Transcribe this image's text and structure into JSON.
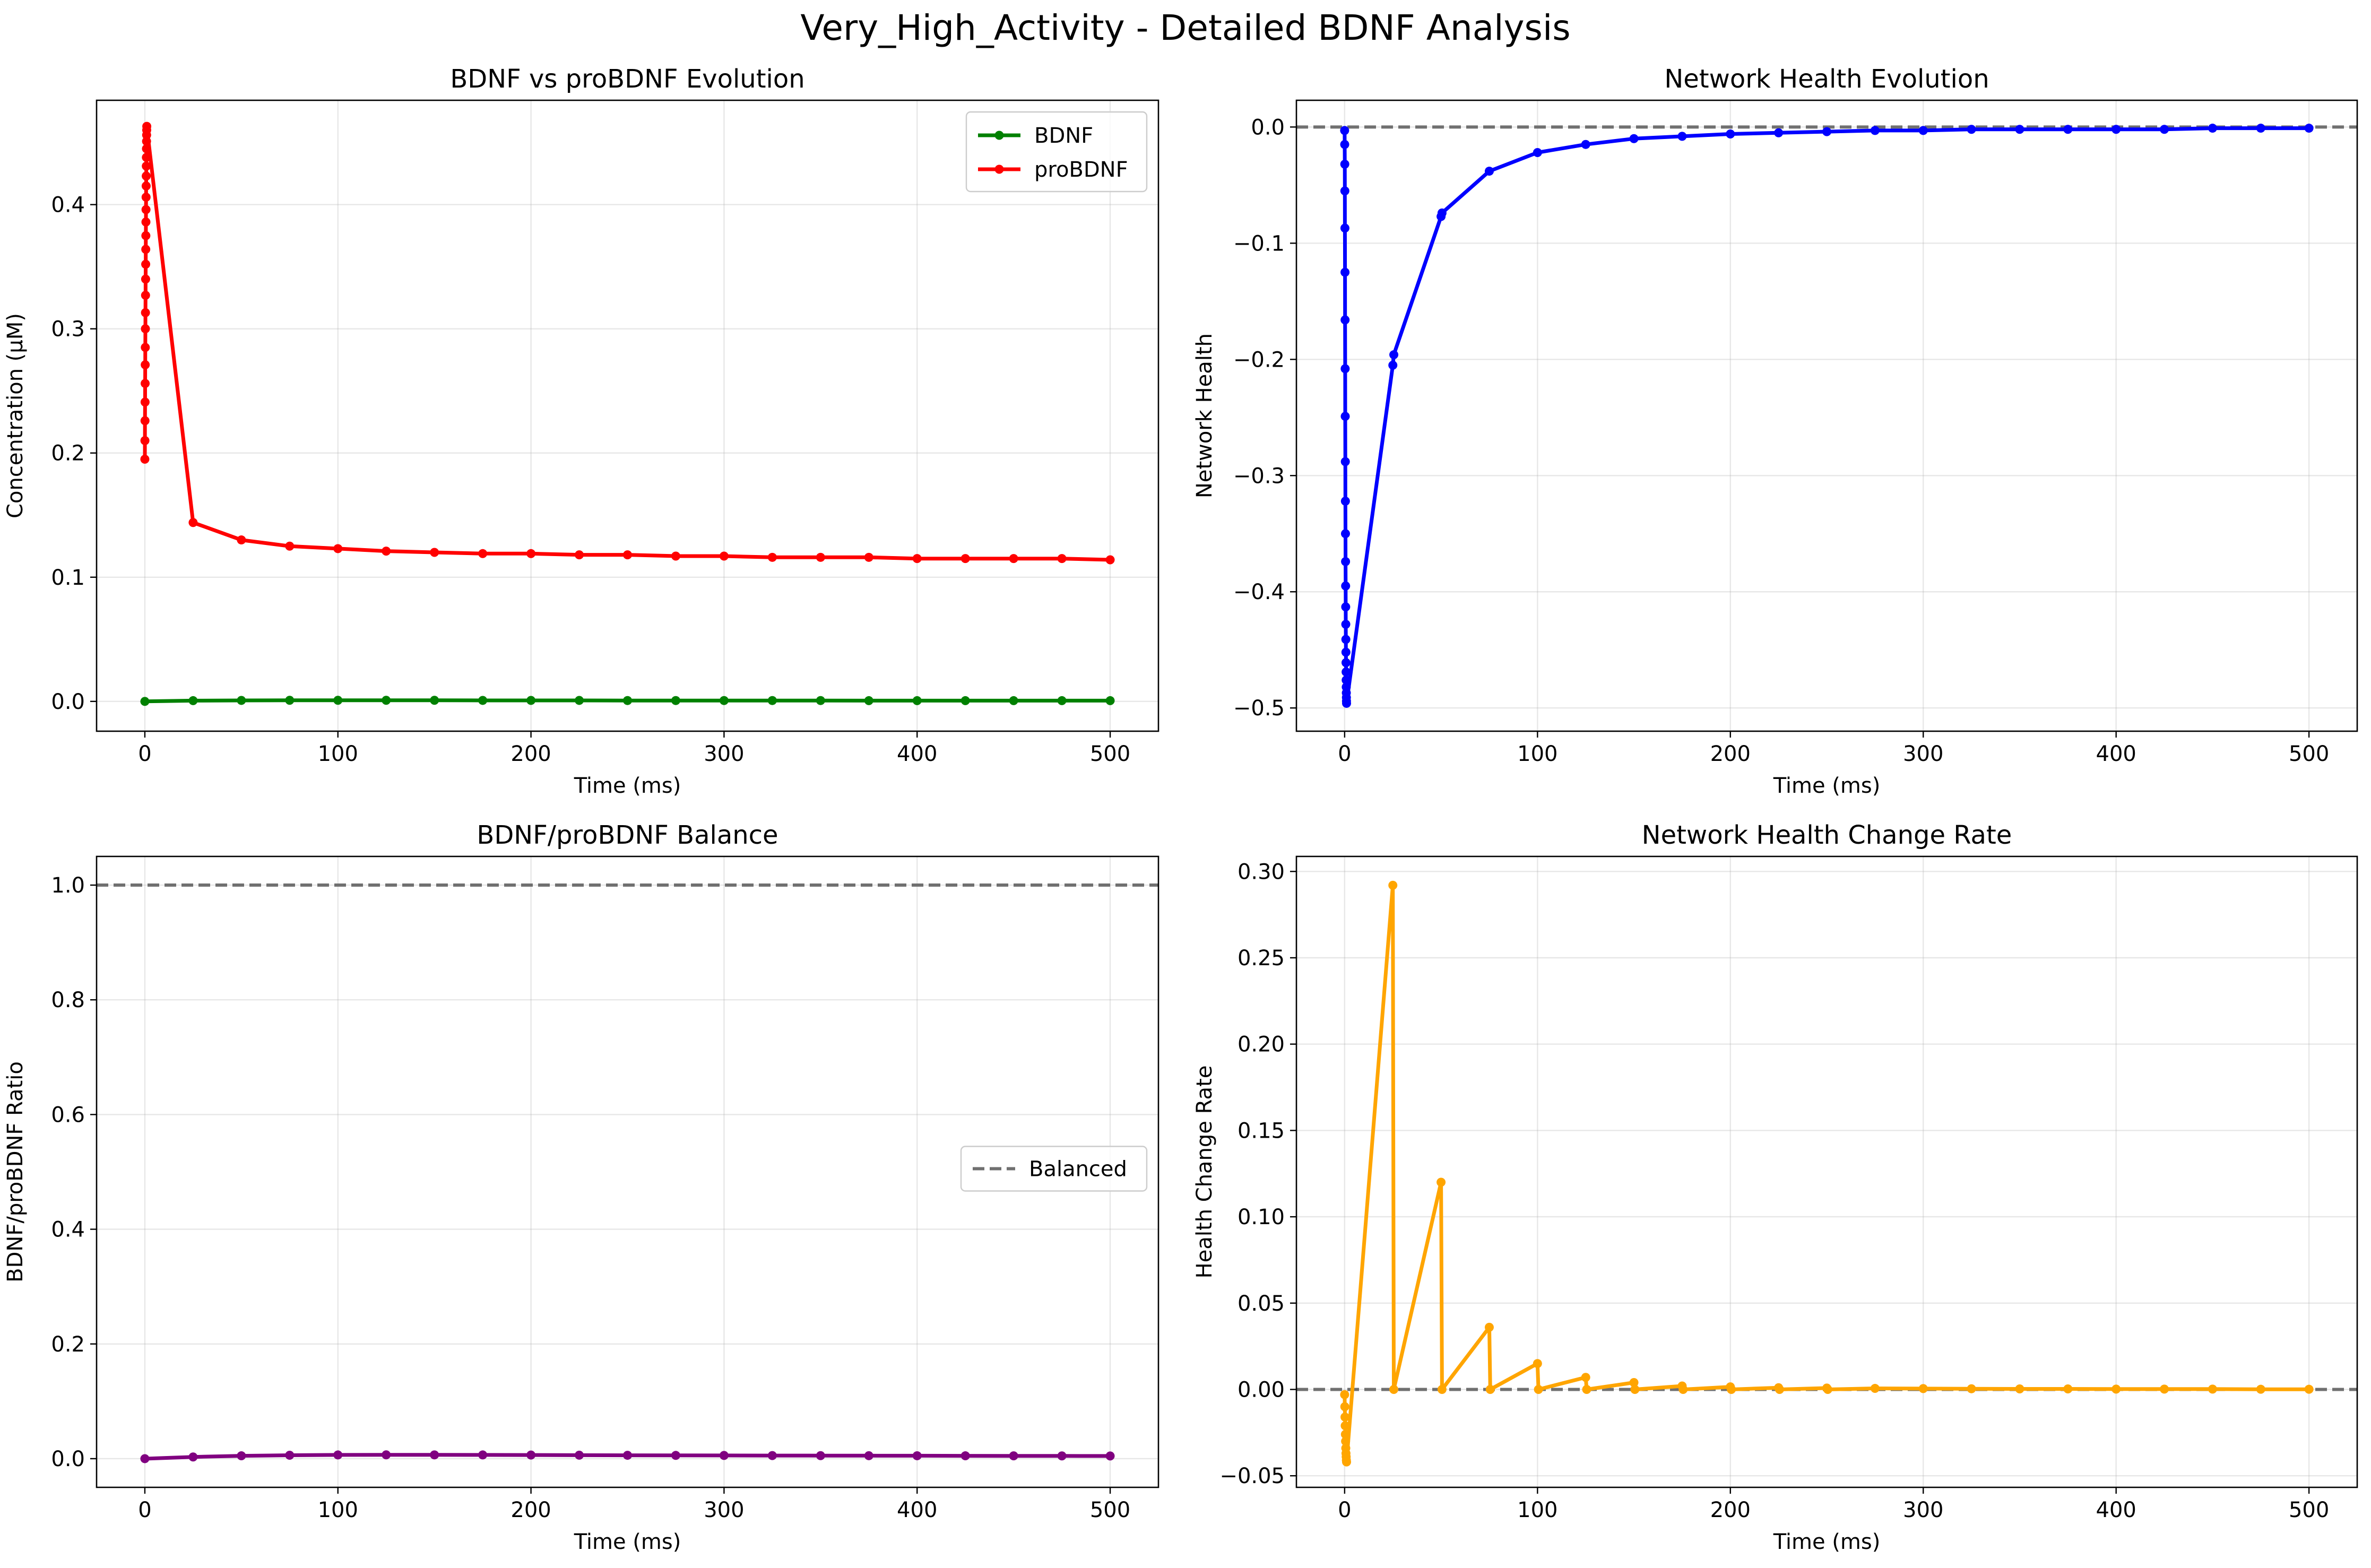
{
  "figure": {
    "title": "Very_High_Activity - Detailed BDNF Analysis"
  },
  "chart_data": [
    {
      "id": "bdnf_probdnf",
      "type": "line",
      "title": "BDNF vs proBDNF Evolution",
      "xlabel": "Time (ms)",
      "ylabel": "Concentration (μM)",
      "xlim": [
        -25,
        525
      ],
      "ylim": [
        -0.024,
        0.484
      ],
      "xticks": [
        0,
        100,
        200,
        300,
        400,
        500
      ],
      "yticks": [
        0.0,
        0.1,
        0.2,
        0.3,
        0.4
      ],
      "xtick_labels": [
        "0",
        "100",
        "200",
        "300",
        "400",
        "500"
      ],
      "ytick_labels": [
        "0.0",
        "0.1",
        "0.2",
        "0.3",
        "0.4"
      ],
      "grid": true,
      "legend": "top-right",
      "series": [
        {
          "name": "BDNF",
          "color": "#008000",
          "x": [
            0,
            25,
            50,
            75,
            100,
            125,
            150,
            175,
            200,
            225,
            250,
            275,
            300,
            325,
            350,
            375,
            400,
            425,
            450,
            475,
            500
          ],
          "y": [
            0.0,
            0.0006,
            0.0008,
            0.0009,
            0.0009,
            0.0009,
            0.0009,
            0.0008,
            0.0008,
            0.0008,
            0.0007,
            0.0007,
            0.0007,
            0.0007,
            0.0007,
            0.0006,
            0.0006,
            0.0006,
            0.0006,
            0.0006,
            0.0006
          ]
        },
        {
          "name": "proBDNF",
          "color": "#ff0000",
          "x": [
            0,
            0.04,
            0.08,
            0.12,
            0.16,
            0.2,
            0.24,
            0.28,
            0.32,
            0.36,
            0.4,
            0.44,
            0.48,
            0.52,
            0.56,
            0.6,
            0.64,
            0.68,
            0.72,
            0.76,
            0.8,
            0.84,
            0.88,
            0.92,
            0.96,
            1.0,
            25,
            50,
            75,
            100,
            125,
            150,
            175,
            200,
            225,
            250,
            275,
            300,
            325,
            350,
            375,
            400,
            425,
            450,
            475,
            500
          ],
          "y": [
            0.195,
            0.21,
            0.226,
            0.241,
            0.256,
            0.271,
            0.285,
            0.3,
            0.313,
            0.327,
            0.34,
            0.352,
            0.364,
            0.375,
            0.386,
            0.396,
            0.406,
            0.415,
            0.423,
            0.431,
            0.438,
            0.445,
            0.451,
            0.456,
            0.46,
            0.463,
            0.144,
            0.13,
            0.125,
            0.123,
            0.121,
            0.12,
            0.119,
            0.119,
            0.118,
            0.118,
            0.117,
            0.117,
            0.116,
            0.116,
            0.116,
            0.115,
            0.115,
            0.115,
            0.115,
            0.114
          ]
        }
      ]
    },
    {
      "id": "network_health",
      "type": "line",
      "title": "Network Health Evolution",
      "xlabel": "Time (ms)",
      "ylabel": "Network Health",
      "xlim": [
        -25,
        525
      ],
      "ylim": [
        -0.52,
        0.023
      ],
      "xticks": [
        0,
        100,
        200,
        300,
        400,
        500
      ],
      "yticks": [
        0.0,
        -0.1,
        -0.2,
        -0.3,
        -0.4,
        -0.5
      ],
      "xtick_labels": [
        "0",
        "100",
        "200",
        "300",
        "400",
        "500"
      ],
      "ytick_labels": [
        "0.0",
        "−0.1",
        "−0.2",
        "−0.3",
        "−0.4",
        "−0.5"
      ],
      "grid": true,
      "hlines": [
        {
          "y": 0.0,
          "color": "#707070"
        }
      ],
      "series": [
        {
          "color": "#0000ff",
          "x": [
            0,
            0.04,
            0.08,
            0.12,
            0.16,
            0.2,
            0.24,
            0.28,
            0.32,
            0.36,
            0.4,
            0.44,
            0.48,
            0.52,
            0.56,
            0.6,
            0.64,
            0.68,
            0.72,
            0.76,
            0.8,
            0.84,
            0.88,
            0.92,
            0.96,
            1.0,
            25,
            25.5,
            50,
            50.5,
            75,
            100,
            125,
            150,
            175,
            200,
            225,
            250,
            275,
            300,
            325,
            350,
            375,
            400,
            425,
            450,
            475,
            500
          ],
          "y": [
            -0.003,
            -0.015,
            -0.032,
            -0.055,
            -0.087,
            -0.125,
            -0.166,
            -0.208,
            -0.249,
            -0.288,
            -0.322,
            -0.35,
            -0.374,
            -0.395,
            -0.413,
            -0.428,
            -0.441,
            -0.452,
            -0.461,
            -0.469,
            -0.476,
            -0.482,
            -0.487,
            -0.491,
            -0.494,
            -0.496,
            -0.205,
            -0.196,
            -0.077,
            -0.074,
            -0.038,
            -0.022,
            -0.015,
            -0.01,
            -0.008,
            -0.006,
            -0.005,
            -0.004,
            -0.003,
            -0.003,
            -0.002,
            -0.002,
            -0.002,
            -0.002,
            -0.002,
            -0.001,
            -0.001,
            -0.001
          ]
        }
      ]
    },
    {
      "id": "balance",
      "type": "line",
      "title": "BDNF/proBDNF Balance",
      "xlabel": "Time (ms)",
      "ylabel": "BDNF/proBDNF Ratio",
      "xlim": [
        -25,
        525
      ],
      "ylim": [
        -0.05,
        1.05
      ],
      "xticks": [
        0,
        100,
        200,
        300,
        400,
        500
      ],
      "yticks": [
        0.0,
        0.2,
        0.4,
        0.6,
        0.8,
        1.0
      ],
      "xtick_labels": [
        "0",
        "100",
        "200",
        "300",
        "400",
        "500"
      ],
      "ytick_labels": [
        "0.0",
        "0.2",
        "0.4",
        "0.6",
        "0.8",
        "1.0"
      ],
      "grid": true,
      "legend": "center-right",
      "hlines": [
        {
          "y": 1.0,
          "color": "#707070",
          "name": "Balanced"
        }
      ],
      "series": [
        {
          "color": "#800080",
          "x": [
            0,
            25,
            50,
            75,
            100,
            125,
            150,
            175,
            200,
            225,
            250,
            275,
            300,
            325,
            350,
            375,
            400,
            425,
            450,
            475,
            500
          ],
          "y": [
            0.0,
            0.003,
            0.005,
            0.006,
            0.0065,
            0.0067,
            0.0066,
            0.0065,
            0.0063,
            0.0061,
            0.0059,
            0.0057,
            0.0056,
            0.0054,
            0.0053,
            0.0052,
            0.0051,
            0.005,
            0.0049,
            0.0048,
            0.0047
          ]
        }
      ]
    },
    {
      "id": "health_rate",
      "type": "line",
      "title": "Network Health Change Rate",
      "xlabel": "Time (ms)",
      "ylabel": "Health Change Rate",
      "xlim": [
        -25,
        525
      ],
      "ylim": [
        -0.0567,
        0.3087
      ],
      "xticks": [
        0,
        100,
        200,
        300,
        400,
        500
      ],
      "yticks": [
        -0.05,
        0.0,
        0.05,
        0.1,
        0.15,
        0.2,
        0.25,
        0.3
      ],
      "xtick_labels": [
        "0",
        "100",
        "200",
        "300",
        "400",
        "500"
      ],
      "ytick_labels": [
        "−0.05",
        "0.00",
        "0.05",
        "0.10",
        "0.15",
        "0.20",
        "0.25",
        "0.30"
      ],
      "grid": true,
      "hlines": [
        {
          "y": 0.0,
          "color": "#707070"
        }
      ],
      "series": [
        {
          "color": "#ffa500",
          "x": [
            0,
            0.1,
            0.2,
            0.3,
            0.4,
            0.5,
            0.6,
            0.7,
            0.8,
            0.9,
            1.0,
            25,
            25.5,
            50,
            50.5,
            75,
            75.5,
            100,
            100.5,
            125,
            125.5,
            150,
            150.5,
            175,
            175.5,
            200,
            200.5,
            225,
            225.5,
            250,
            250.5,
            275,
            300,
            325,
            350,
            375,
            400,
            425,
            450,
            475,
            500
          ],
          "y": [
            -0.003,
            -0.01,
            -0.016,
            -0.021,
            -0.026,
            -0.03,
            -0.034,
            -0.037,
            -0.039,
            -0.041,
            -0.042,
            0.292,
            0.0,
            0.12,
            0.0,
            0.036,
            0.0,
            0.015,
            0.0,
            0.007,
            0.0,
            0.004,
            0.0,
            0.002,
            0.0,
            0.0015,
            0.0,
            0.001,
            0.0,
            0.0008,
            0.0,
            0.0006,
            0.0005,
            0.0004,
            0.0003,
            0.0003,
            0.0002,
            0.0002,
            0.0002,
            0.0001,
            0.0001
          ]
        }
      ]
    }
  ]
}
